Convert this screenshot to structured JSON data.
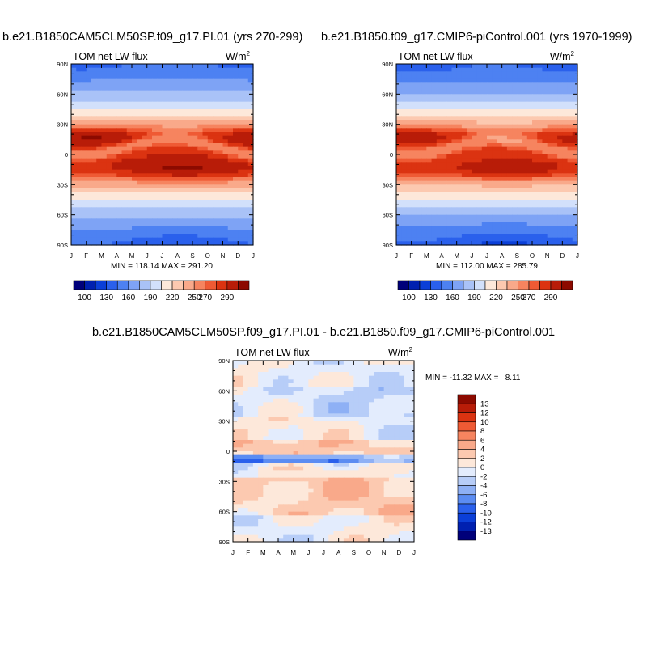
{
  "panel_titles": {
    "left": "b.e21.B1850CAM5CLM50SP.f09_g17.PI.01 (yrs 270-299)",
    "right": "b.e21.B1850.f09_g17.CMIP6-piControl.001 (yrs 1970-1999)",
    "diff": "b.e21.B1850CAM5CLM50SP.f09_g17.PI.01 - b.e21.B1850.f09_g17.CMIP6-piControl.001"
  },
  "variable": "TOM net LW flux",
  "units_base": "W/m",
  "units_exp": "2",
  "months": [
    "J",
    "F",
    "M",
    "A",
    "M",
    "J",
    "J",
    "A",
    "S",
    "O",
    "N",
    "D",
    "J"
  ],
  "lat_labels": [
    "90N",
    "60N",
    "30N",
    "0",
    "30S",
    "60S",
    "90S"
  ],
  "stats": {
    "left": "MIN = 118.14 MAX = 291.20",
    "right": "MIN = 112.00 MAX = 285.79",
    "diff": "MIN = -11.32 MAX =   8.11"
  },
  "colors": {
    "main": [
      "#00007a",
      "#0020b0",
      "#0b3fd8",
      "#2a60ec",
      "#4d81f2",
      "#7ea3f5",
      "#a9c2f7",
      "#d2e0fb",
      "#fde8da",
      "#fcc9b0",
      "#f9a98a",
      "#f6845f",
      "#ef5a34",
      "#db3311",
      "#b81c08",
      "#8c0a00"
    ],
    "diff": [
      "#00007a",
      "#0020b0",
      "#0b3fd8",
      "#2a60ec",
      "#5b8cf2",
      "#8eb0f5",
      "#b7cdf8",
      "#e3ecfd",
      "#fde8da",
      "#fcc9b0",
      "#f9a98a",
      "#f6845f",
      "#ef5a34",
      "#db3311",
      "#b81c08",
      "#8c0a00"
    ]
  },
  "chart_data": [
    {
      "type": "heatmap",
      "title": "b.e21.B1850CAM5CLM50SP.f09_g17.PI.01 (yrs 270-299)",
      "subtitle": "TOM net LW flux",
      "units": "W/m^2",
      "x_ticks": [
        "J",
        "F",
        "M",
        "A",
        "M",
        "J",
        "J",
        "A",
        "S",
        "O",
        "N",
        "D",
        "J"
      ],
      "y_ticks": [
        "90N",
        "60N",
        "30N",
        "0",
        "30S",
        "60S",
        "90S"
      ],
      "ylim": [
        -90,
        90
      ],
      "min": 118.14,
      "max": 291.2,
      "colorbar_labels": [
        "100",
        "130",
        "160",
        "190",
        "220",
        "250",
        "270",
        "290"
      ]
    },
    {
      "type": "heatmap",
      "title": "b.e21.B1850.f09_g17.CMIP6-piControl.001 (yrs 1970-1999)",
      "subtitle": "TOM net LW flux",
      "units": "W/m^2",
      "x_ticks": [
        "J",
        "F",
        "M",
        "A",
        "M",
        "J",
        "J",
        "A",
        "S",
        "O",
        "N",
        "D",
        "J"
      ],
      "y_ticks": [
        "90N",
        "60N",
        "30N",
        "0",
        "30S",
        "60S",
        "90S"
      ],
      "ylim": [
        -90,
        90
      ],
      "min": 112.0,
      "max": 285.79,
      "colorbar_labels": [
        "100",
        "130",
        "160",
        "190",
        "220",
        "250",
        "270",
        "290"
      ]
    },
    {
      "type": "heatmap",
      "title": "b.e21.B1850CAM5CLM50SP.f09_g17.PI.01 - b.e21.B1850.f09_g17.CMIP6-piControl.001",
      "subtitle": "TOM net LW flux",
      "units": "W/m^2",
      "x_ticks": [
        "J",
        "F",
        "M",
        "A",
        "M",
        "J",
        "J",
        "A",
        "S",
        "O",
        "N",
        "D",
        "J"
      ],
      "y_ticks": [
        "90N",
        "60N",
        "30N",
        "0",
        "30S",
        "60S",
        "90S"
      ],
      "ylim": [
        -90,
        90
      ],
      "min": -11.32,
      "max": 8.11,
      "colorbar_labels": [
        "13",
        "12",
        "10",
        "8",
        "6",
        "4",
        "2",
        "0",
        "-2",
        "-4",
        "-6",
        "-8",
        "-10",
        "-12",
        "-13"
      ]
    }
  ]
}
